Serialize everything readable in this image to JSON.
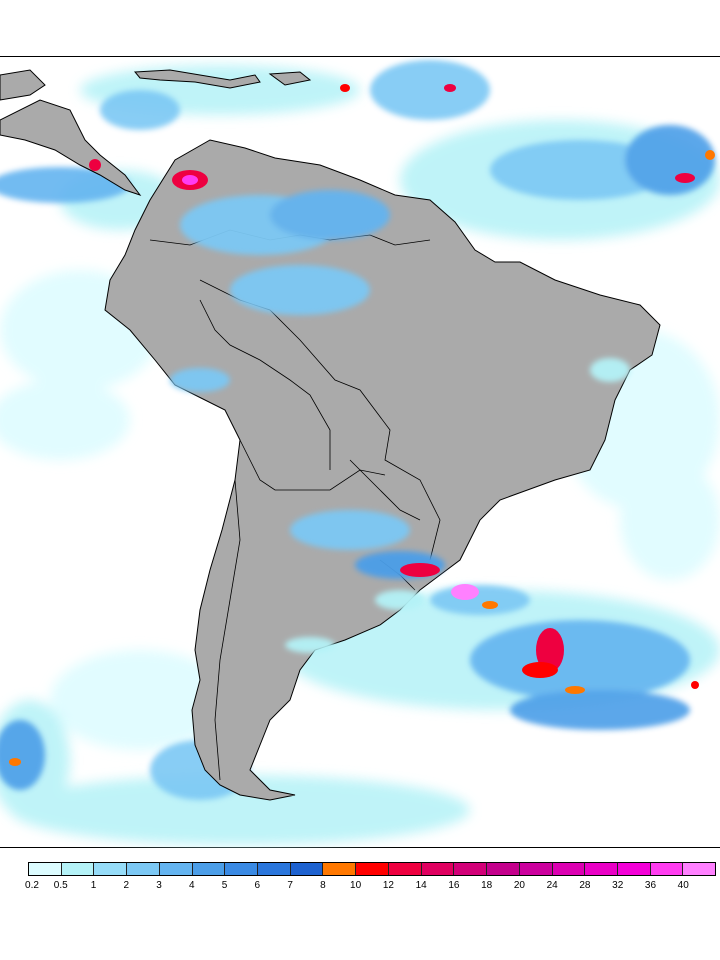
{
  "legend": {
    "ticks": [
      "0.2",
      "0.5",
      "1",
      "2",
      "3",
      "4",
      "5",
      "6",
      "7",
      "8",
      "10",
      "12",
      "14",
      "16",
      "18",
      "20",
      "24",
      "28",
      "32",
      "36",
      "40"
    ],
    "colors": [
      "#dcfcff",
      "#b4f2f7",
      "#96dcf8",
      "#7cc8f4",
      "#64b4f0",
      "#4c9ee8",
      "#3a8ae4",
      "#2a76dc",
      "#1e62d0",
      "#ff7800",
      "#ff0000",
      "#ee0040",
      "#e00060",
      "#d20078",
      "#c4008c",
      "#cc009e",
      "#dc00b2",
      "#ea00c6",
      "#f400d8",
      "#ff3cf0",
      "#ff80ff"
    ]
  },
  "map": {
    "land_color": "#aaaaaa",
    "ocean_color": "#ffffff",
    "border_color": "#000000"
  }
}
